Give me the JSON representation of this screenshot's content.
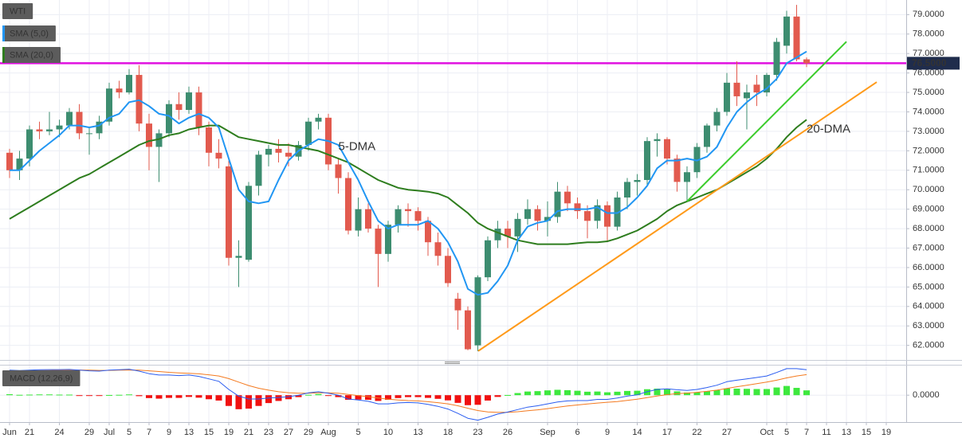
{
  "chart_data": {
    "type": "candlestick",
    "candle_name": "WTI",
    "up_color": "#3d8d70",
    "down_color": "#e25a4e",
    "categories": [
      "Jun",
      null,
      "21",
      null,
      null,
      "24",
      null,
      null,
      "29",
      null,
      "Jul",
      null,
      "5",
      null,
      "7",
      null,
      "9",
      null,
      "13",
      null,
      "15",
      null,
      "19",
      null,
      "21",
      null,
      "23",
      null,
      "27",
      null,
      "29",
      null,
      "Aug",
      null,
      null,
      "5",
      null,
      null,
      "10",
      null,
      null,
      "13",
      null,
      null,
      "18",
      null,
      null,
      "23",
      null,
      null,
      "26",
      null,
      null,
      null,
      "Sep",
      null,
      null,
      "6",
      null,
      null,
      "9",
      null,
      null,
      "14",
      null,
      null,
      "17",
      null,
      null,
      "22",
      null,
      null,
      "27",
      null,
      null,
      null,
      "Oct",
      null,
      "5",
      null,
      "7",
      null,
      "11",
      null,
      "13",
      null,
      "15",
      null,
      "19"
    ],
    "open": [
      71.9,
      71.0,
      71.6,
      73.1,
      73.0,
      73.1,
      73.3,
      74.0,
      72.9,
      72.9,
      73.5,
      75.2,
      75.0,
      75.9,
      73.4,
      72.2,
      72.9,
      74.4,
      74.1,
      75.0,
      73.2,
      71.9,
      71.2,
      66.5,
      66.4,
      70.2,
      71.8,
      72.1,
      71.9,
      71.7,
      72.3,
      73.5,
      73.7,
      71.3,
      70.6,
      67.9,
      69.0,
      68.0,
      66.7,
      68.2,
      69.0,
      68.9,
      68.4,
      67.3,
      66.6,
      64.4,
      63.8,
      62.0,
      65.5,
      67.4,
      68.0,
      67.6,
      68.5,
      69.0,
      68.4,
      68.6,
      69.9,
      69.3,
      68.9,
      68.4,
      69.2,
      68.1,
      69.6,
      70.4,
      70.5,
      72.5,
      72.6,
      71.6,
      70.4,
      70.9,
      72.2,
      73.3,
      74.0,
      75.5,
      74.7,
      75.4,
      75.0,
      75.9,
      77.4,
      78.9,
      76.7,
      null,
      null,
      null,
      null,
      null,
      null,
      null,
      null
    ],
    "high": [
      72.1,
      72.0,
      73.3,
      73.5,
      74.0,
      73.6,
      74.2,
      74.4,
      73.2,
      73.8,
      75.5,
      75.6,
      76.2,
      76.4,
      73.9,
      73.1,
      74.6,
      75.0,
      75.3,
      75.3,
      73.5,
      72.6,
      71.5,
      67.4,
      70.4,
      72.0,
      72.3,
      72.6,
      72.4,
      72.5,
      73.7,
      73.9,
      73.9,
      71.6,
      70.9,
      69.6,
      69.3,
      68.2,
      68.4,
      69.2,
      69.3,
      69.1,
      68.6,
      67.8,
      67.0,
      64.7,
      64.0,
      65.6,
      67.6,
      68.4,
      68.4,
      68.8,
      69.5,
      69.2,
      69.4,
      70.4,
      70.2,
      69.6,
      69.2,
      69.5,
      69.4,
      69.9,
      70.6,
      70.8,
      72.7,
      72.9,
      72.7,
      71.8,
      71.2,
      72.4,
      73.4,
      74.2,
      76.0,
      76.6,
      75.4,
      75.9,
      76.0,
      77.8,
      79.2,
      79.5,
      76.8,
      null,
      null,
      null,
      null,
      null,
      null,
      null,
      null
    ],
    "low": [
      70.6,
      70.5,
      71.2,
      72.6,
      72.8,
      72.7,
      73.1,
      72.6,
      71.8,
      72.6,
      73.3,
      74.7,
      74.9,
      73.0,
      71.0,
      70.4,
      72.7,
      73.6,
      73.9,
      72.8,
      71.2,
      71.1,
      66.1,
      65.0,
      66.3,
      69.7,
      71.2,
      71.4,
      71.2,
      71.5,
      72.0,
      73.1,
      71.0,
      69.8,
      67.7,
      67.6,
      67.8,
      65.0,
      66.3,
      67.8,
      68.1,
      67.9,
      66.6,
      66.1,
      65.0,
      62.8,
      61.75,
      61.7,
      65.3,
      67.0,
      67.0,
      66.8,
      68.2,
      67.9,
      67.6,
      68.3,
      68.9,
      68.5,
      67.5,
      68.0,
      67.3,
      67.9,
      69.0,
      69.7,
      70.2,
      71.7,
      71.3,
      69.9,
      69.4,
      70.6,
      71.9,
      73.0,
      73.8,
      74.3,
      73.1,
      74.3,
      74.8,
      75.6,
      77.0,
      76.6,
      76.3,
      null,
      null,
      null,
      null,
      null,
      null,
      null,
      null
    ],
    "close": [
      71.0,
      71.6,
      73.1,
      73.0,
      73.1,
      73.3,
      74.0,
      72.9,
      72.9,
      73.5,
      75.2,
      75.0,
      75.9,
      73.4,
      72.2,
      72.9,
      74.4,
      74.1,
      75.0,
      73.2,
      71.9,
      71.6,
      66.5,
      66.6,
      70.2,
      71.8,
      72.1,
      71.9,
      71.7,
      72.3,
      73.5,
      73.7,
      71.3,
      70.6,
      67.9,
      69.0,
      68.0,
      66.7,
      68.2,
      69.0,
      68.9,
      68.4,
      67.3,
      66.6,
      65.2,
      63.8,
      61.8,
      65.5,
      67.4,
      68.0,
      67.6,
      68.5,
      69.0,
      68.4,
      68.6,
      69.9,
      69.3,
      68.9,
      68.4,
      69.2,
      68.1,
      69.6,
      70.4,
      70.5,
      72.5,
      72.6,
      71.6,
      70.4,
      70.9,
      72.2,
      73.3,
      74.0,
      75.5,
      74.8,
      75.0,
      75.0,
      75.9,
      77.6,
      78.9,
      76.7,
      76.5,
      null,
      null,
      null,
      null,
      null,
      null,
      null,
      null
    ],
    "series": [
      {
        "name": "SMA (5,0)",
        "color": "#2196f3",
        "values": [
          71.0,
          71.0,
          71.5,
          72.0,
          72.4,
          72.8,
          73.3,
          73.3,
          73.2,
          73.3,
          73.7,
          73.9,
          74.5,
          74.6,
          74.3,
          73.9,
          73.8,
          73.4,
          73.7,
          73.9,
          73.7,
          73.2,
          71.6,
          70.0,
          69.4,
          69.3,
          69.4,
          70.5,
          71.5,
          72.0,
          72.3,
          72.6,
          72.5,
          72.3,
          71.4,
          70.5,
          69.4,
          68.4,
          68.0,
          68.2,
          68.2,
          68.2,
          68.4,
          68.0,
          67.3,
          66.3,
          64.9,
          64.6,
          64.7,
          65.3,
          66.1,
          67.4,
          68.1,
          68.3,
          68.4,
          68.9,
          69.0,
          69.0,
          69.0,
          69.1,
          68.8,
          68.8,
          69.1,
          69.6,
          70.2,
          71.1,
          71.5,
          71.5,
          71.6,
          71.5,
          71.7,
          72.2,
          73.2,
          74.0,
          74.5,
          74.9,
          75.2,
          75.7,
          76.5,
          76.8,
          77.1,
          null,
          null,
          null,
          null,
          null,
          null,
          null,
          null
        ]
      },
      {
        "name": "SMA (20,0)",
        "color": "#2e7d1e",
        "values": [
          68.5,
          68.8,
          69.1,
          69.4,
          69.7,
          70.0,
          70.3,
          70.6,
          70.8,
          71.1,
          71.4,
          71.7,
          72.0,
          72.3,
          72.5,
          72.6,
          72.8,
          72.9,
          73.1,
          73.2,
          73.3,
          73.3,
          73.0,
          72.7,
          72.6,
          72.5,
          72.4,
          72.3,
          72.3,
          72.2,
          72.1,
          72.0,
          71.8,
          71.6,
          71.4,
          71.1,
          70.8,
          70.5,
          70.3,
          70.1,
          70.0,
          69.95,
          69.9,
          69.8,
          69.6,
          69.2,
          68.8,
          68.3,
          68.0,
          67.8,
          67.6,
          67.4,
          67.3,
          67.2,
          67.2,
          67.2,
          67.2,
          67.25,
          67.3,
          67.3,
          67.35,
          67.5,
          67.7,
          67.9,
          68.2,
          68.5,
          68.9,
          69.2,
          69.4,
          69.6,
          69.8,
          70.0,
          70.3,
          70.6,
          70.9,
          71.2,
          71.6,
          72.1,
          72.7,
          73.2,
          73.6,
          null,
          null,
          null,
          null,
          null,
          null,
          null,
          null
        ]
      }
    ],
    "ylim": [
      61.25,
      79.75
    ],
    "yticks": [
      {
        "value": 62,
        "label": "62.0000"
      },
      {
        "value": 63,
        "label": "63.0000"
      },
      {
        "value": 64,
        "label": "64.0000"
      },
      {
        "value": 65,
        "label": "65.0000"
      },
      {
        "value": 66,
        "label": "66.0000"
      },
      {
        "value": 67,
        "label": "67.0000"
      },
      {
        "value": 68,
        "label": "68.0000"
      },
      {
        "value": 69,
        "label": "69.0000"
      },
      {
        "value": 70,
        "label": "70.0000"
      },
      {
        "value": 71,
        "label": "71.0000"
      },
      {
        "value": 72,
        "label": "72.0000"
      },
      {
        "value": 73,
        "label": "73.0000"
      },
      {
        "value": 74,
        "label": "74.0000"
      },
      {
        "value": 75,
        "label": "75.0000"
      },
      {
        "value": 76,
        "label": "76.0000"
      },
      {
        "value": 77,
        "label": "77.0000"
      },
      {
        "value": 78,
        "label": "78.0000"
      },
      {
        "value": 79,
        "label": "79.0000"
      }
    ],
    "grid": true,
    "hline": {
      "value": 76.5,
      "label": "76.5000",
      "color": "#e010e0"
    },
    "trendlines": [
      {
        "color": "#ff9a1a",
        "x": [
          47.04,
          87.04
        ],
        "y": [
          61.71,
          75.53
        ]
      },
      {
        "color": "#3ccc2c",
        "x": [
          68,
          84
        ],
        "y": [
          69.4,
          77.61
        ]
      }
    ],
    "annotations": [
      {
        "text": "5-DMA",
        "x": 33,
        "y": 72.2,
        "color": "#2196f3"
      },
      {
        "text": "20-DMA",
        "x": 80,
        "y": 73.1,
        "color": "#2e7d1e"
      }
    ],
    "macd": {
      "name": "MACD (12,26,9)",
      "ylim": [
        -1.4,
        1.5
      ],
      "yticks": [
        {
          "value": 0,
          "label": "0.0000"
        }
      ],
      "macd": {
        "color": "#2a5cf0",
        "values": [
          1.3,
          1.28,
          1.3,
          1.32,
          1.33,
          1.33,
          1.34,
          1.3,
          1.27,
          1.25,
          1.3,
          1.32,
          1.35,
          1.25,
          1.12,
          1.05,
          1.05,
          1.02,
          1.05,
          0.98,
          0.85,
          0.72,
          0.3,
          -0.05,
          -0.2,
          -0.2,
          -0.15,
          -0.12,
          -0.08,
          0.0,
          0.12,
          0.18,
          0.1,
          0.0,
          -0.2,
          -0.25,
          -0.32,
          -0.45,
          -0.45,
          -0.4,
          -0.38,
          -0.4,
          -0.48,
          -0.58,
          -0.72,
          -0.95,
          -1.2,
          -1.3,
          -1.15,
          -0.98,
          -0.88,
          -0.75,
          -0.62,
          -0.55,
          -0.45,
          -0.35,
          -0.3,
          -0.28,
          -0.28,
          -0.22,
          -0.22,
          -0.15,
          -0.05,
          0.02,
          0.18,
          0.3,
          0.33,
          0.28,
          0.25,
          0.3,
          0.4,
          0.52,
          0.7,
          0.78,
          0.85,
          0.92,
          1.0,
          1.18,
          1.38,
          1.38,
          1.32,
          null,
          null,
          null,
          null,
          null,
          null,
          null,
          null
        ]
      },
      "signal": {
        "color": "#f47a20",
        "values": [
          1.25,
          1.26,
          1.27,
          1.28,
          1.29,
          1.3,
          1.31,
          1.31,
          1.3,
          1.29,
          1.29,
          1.3,
          1.31,
          1.3,
          1.27,
          1.23,
          1.19,
          1.16,
          1.14,
          1.11,
          1.06,
          1.0,
          0.86,
          0.68,
          0.5,
          0.36,
          0.26,
          0.18,
          0.13,
          0.1,
          0.1,
          0.12,
          0.12,
          0.1,
          0.04,
          -0.02,
          -0.08,
          -0.15,
          -0.21,
          -0.25,
          -0.28,
          -0.3,
          -0.34,
          -0.39,
          -0.45,
          -0.55,
          -0.68,
          -0.8,
          -0.87,
          -0.89,
          -0.89,
          -0.86,
          -0.81,
          -0.76,
          -0.7,
          -0.63,
          -0.56,
          -0.51,
          -0.46,
          -0.41,
          -0.37,
          -0.33,
          -0.27,
          -0.21,
          -0.13,
          -0.04,
          0.03,
          0.08,
          0.11,
          0.15,
          0.2,
          0.26,
          0.35,
          0.44,
          0.52,
          0.6,
          0.68,
          0.78,
          0.9,
          1.0,
          1.07,
          null,
          null,
          null,
          null,
          null,
          null,
          null,
          null
        ]
      },
      "histogram": {
        "up_color": "#3ee83e",
        "down_color": "#f01010",
        "values": [
          0.05,
          0.02,
          0.03,
          0.04,
          0.04,
          0.03,
          0.03,
          -0.01,
          -0.03,
          -0.04,
          0.01,
          0.02,
          0.04,
          -0.05,
          -0.15,
          -0.18,
          -0.14,
          -0.14,
          -0.09,
          -0.13,
          -0.21,
          -0.28,
          -0.56,
          -0.73,
          -0.7,
          -0.56,
          -0.41,
          -0.3,
          -0.21,
          -0.1,
          0.02,
          0.06,
          -0.02,
          -0.1,
          -0.24,
          -0.23,
          -0.24,
          -0.3,
          -0.24,
          -0.15,
          -0.1,
          -0.1,
          -0.14,
          -0.19,
          -0.27,
          -0.4,
          -0.52,
          -0.5,
          -0.28,
          -0.09,
          0.01,
          0.11,
          0.19,
          0.21,
          0.25,
          0.28,
          0.26,
          0.23,
          0.18,
          0.19,
          0.15,
          0.18,
          0.22,
          0.23,
          0.31,
          0.34,
          0.3,
          0.2,
          0.14,
          0.15,
          0.2,
          0.26,
          0.35,
          0.34,
          0.33,
          0.32,
          0.32,
          0.4,
          0.48,
          0.38,
          0.25,
          null,
          null,
          null,
          null,
          null,
          null,
          null,
          null
        ]
      }
    }
  }
}
